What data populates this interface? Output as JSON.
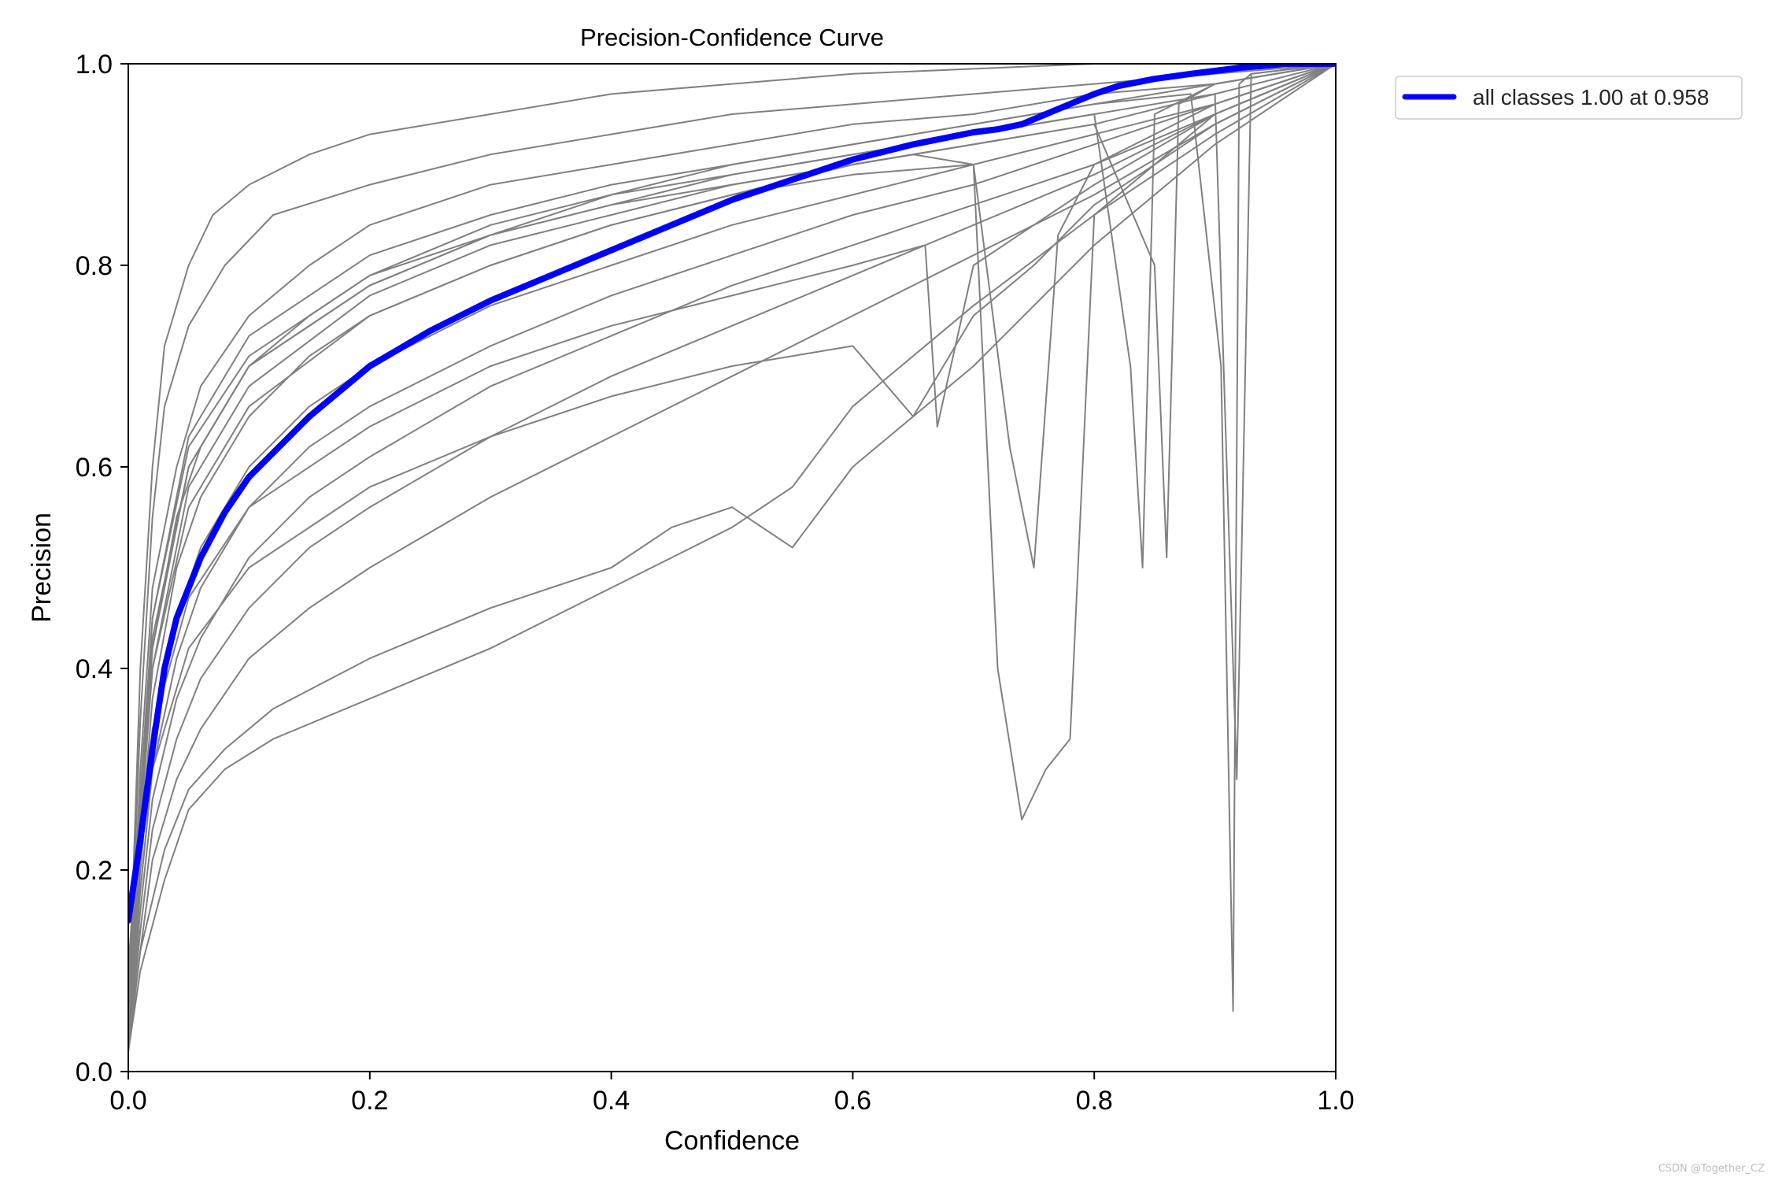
{
  "chart_data": {
    "type": "line",
    "title": "Precision-Confidence Curve",
    "xlabel": "Confidence",
    "ylabel": "Precision",
    "xlim": [
      0.0,
      1.0
    ],
    "ylim": [
      0.0,
      1.0
    ],
    "xticks": [
      "0.0",
      "0.2",
      "0.4",
      "0.6",
      "0.8",
      "1.0"
    ],
    "yticks": [
      "0.0",
      "0.2",
      "0.4",
      "0.6",
      "0.8",
      "1.0"
    ],
    "grid": false,
    "legend_position": "upper-right-outside",
    "legend_label": "all classes 1.00 at 0.958",
    "per_class_curve_color": "#808080",
    "all_classes_color": "#0000ff",
    "series": [
      {
        "name": "all classes 1.00 at 0.958",
        "x": [
          0.0,
          0.01,
          0.02,
          0.03,
          0.04,
          0.06,
          0.08,
          0.1,
          0.15,
          0.2,
          0.25,
          0.3,
          0.35,
          0.4,
          0.45,
          0.5,
          0.55,
          0.6,
          0.65,
          0.7,
          0.72,
          0.74,
          0.76,
          0.78,
          0.8,
          0.82,
          0.85,
          0.88,
          0.9,
          0.92,
          0.95,
          0.958,
          1.0
        ],
        "y": [
          0.15,
          0.23,
          0.32,
          0.4,
          0.45,
          0.51,
          0.555,
          0.59,
          0.65,
          0.7,
          0.735,
          0.765,
          0.79,
          0.815,
          0.84,
          0.865,
          0.885,
          0.905,
          0.92,
          0.932,
          0.935,
          0.94,
          0.95,
          0.96,
          0.97,
          0.978,
          0.985,
          0.99,
          0.993,
          0.996,
          0.999,
          1.0,
          1.0
        ]
      }
    ],
    "per_class_curves": [
      {
        "x": [
          0.0,
          0.01,
          0.02,
          0.03,
          0.05,
          0.07,
          0.1,
          0.15,
          0.2,
          0.3,
          0.4,
          0.5,
          0.6,
          0.7,
          0.8,
          0.9,
          0.95,
          1.0
        ],
        "y": [
          0.05,
          0.4,
          0.6,
          0.72,
          0.8,
          0.85,
          0.88,
          0.91,
          0.93,
          0.95,
          0.97,
          0.98,
          0.99,
          0.995,
          1.0,
          1.0,
          1.0,
          1.0
        ]
      },
      {
        "x": [
          0.0,
          0.01,
          0.02,
          0.03,
          0.05,
          0.08,
          0.12,
          0.2,
          0.3,
          0.4,
          0.5,
          0.6,
          0.7,
          0.8,
          0.9,
          1.0
        ],
        "y": [
          0.05,
          0.35,
          0.55,
          0.66,
          0.74,
          0.8,
          0.85,
          0.88,
          0.91,
          0.93,
          0.95,
          0.96,
          0.97,
          0.98,
          0.99,
          1.0
        ]
      },
      {
        "x": [
          0.0,
          0.01,
          0.02,
          0.04,
          0.06,
          0.1,
          0.15,
          0.2,
          0.3,
          0.4,
          0.5,
          0.6,
          0.7,
          0.8,
          0.9,
          1.0
        ],
        "y": [
          0.04,
          0.3,
          0.48,
          0.6,
          0.68,
          0.75,
          0.8,
          0.84,
          0.88,
          0.9,
          0.92,
          0.94,
          0.95,
          0.97,
          0.98,
          1.0
        ]
      },
      {
        "x": [
          0.0,
          0.01,
          0.02,
          0.04,
          0.06,
          0.1,
          0.15,
          0.2,
          0.3,
          0.4,
          0.5,
          0.6,
          0.7,
          0.8,
          0.9,
          1.0
        ],
        "y": [
          0.04,
          0.25,
          0.42,
          0.55,
          0.62,
          0.7,
          0.75,
          0.79,
          0.84,
          0.87,
          0.9,
          0.92,
          0.94,
          0.96,
          0.98,
          1.0
        ]
      },
      {
        "x": [
          0.0,
          0.01,
          0.02,
          0.04,
          0.06,
          0.1,
          0.15,
          0.2,
          0.3,
          0.4,
          0.5,
          0.6,
          0.7,
          0.8,
          0.9,
          1.0
        ],
        "y": [
          0.03,
          0.22,
          0.37,
          0.5,
          0.57,
          0.65,
          0.71,
          0.75,
          0.8,
          0.84,
          0.87,
          0.9,
          0.92,
          0.94,
          0.97,
          1.0
        ]
      },
      {
        "x": [
          0.0,
          0.01,
          0.02,
          0.04,
          0.06,
          0.1,
          0.15,
          0.2,
          0.3,
          0.4,
          0.5,
          0.6,
          0.7,
          0.8,
          0.9,
          1.0
        ],
        "y": [
          0.03,
          0.2,
          0.33,
          0.45,
          0.52,
          0.6,
          0.66,
          0.7,
          0.76,
          0.8,
          0.84,
          0.87,
          0.9,
          0.93,
          0.96,
          1.0
        ]
      },
      {
        "x": [
          0.0,
          0.01,
          0.02,
          0.04,
          0.06,
          0.1,
          0.15,
          0.2,
          0.3,
          0.4,
          0.5,
          0.6,
          0.7,
          0.8,
          0.9,
          1.0
        ],
        "y": [
          0.03,
          0.18,
          0.3,
          0.41,
          0.48,
          0.56,
          0.62,
          0.66,
          0.72,
          0.77,
          0.81,
          0.85,
          0.88,
          0.92,
          0.96,
          1.0
        ]
      },
      {
        "x": [
          0.0,
          0.01,
          0.02,
          0.04,
          0.06,
          0.1,
          0.15,
          0.2,
          0.3,
          0.4,
          0.5,
          0.6,
          0.7,
          0.8,
          0.9,
          1.0
        ],
        "y": [
          0.02,
          0.16,
          0.27,
          0.37,
          0.43,
          0.51,
          0.57,
          0.61,
          0.68,
          0.73,
          0.78,
          0.82,
          0.86,
          0.9,
          0.95,
          1.0
        ]
      },
      {
        "x": [
          0.0,
          0.01,
          0.02,
          0.04,
          0.06,
          0.1,
          0.15,
          0.2,
          0.3,
          0.4,
          0.5,
          0.6,
          0.7,
          0.8,
          0.9,
          1.0
        ],
        "y": [
          0.02,
          0.14,
          0.24,
          0.33,
          0.39,
          0.46,
          0.52,
          0.56,
          0.63,
          0.69,
          0.74,
          0.79,
          0.84,
          0.89,
          0.95,
          1.0
        ]
      },
      {
        "x": [
          0.0,
          0.01,
          0.02,
          0.04,
          0.06,
          0.1,
          0.15,
          0.2,
          0.3,
          0.4,
          0.5,
          0.6,
          0.7,
          0.8,
          0.9,
          1.0
        ],
        "y": [
          0.02,
          0.12,
          0.21,
          0.29,
          0.34,
          0.41,
          0.46,
          0.5,
          0.57,
          0.63,
          0.69,
          0.75,
          0.81,
          0.87,
          0.94,
          1.0
        ]
      },
      {
        "x": [
          0.0,
          0.01,
          0.03,
          0.05,
          0.08,
          0.12,
          0.2,
          0.3,
          0.4,
          0.5,
          0.55,
          0.6,
          0.7,
          0.8,
          0.9,
          1.0
        ],
        "y": [
          0.02,
          0.1,
          0.19,
          0.26,
          0.3,
          0.33,
          0.37,
          0.42,
          0.48,
          0.54,
          0.58,
          0.66,
          0.76,
          0.85,
          0.93,
          1.0
        ]
      },
      {
        "x": [
          0.0,
          0.01,
          0.03,
          0.05,
          0.08,
          0.12,
          0.2,
          0.3,
          0.4,
          0.45,
          0.5,
          0.55,
          0.6,
          0.7,
          0.8,
          0.9,
          1.0
        ],
        "y": [
          0.02,
          0.12,
          0.22,
          0.28,
          0.32,
          0.36,
          0.41,
          0.46,
          0.5,
          0.54,
          0.56,
          0.52,
          0.6,
          0.7,
          0.82,
          0.92,
          1.0
        ]
      },
      {
        "x": [
          0.0,
          0.02,
          0.05,
          0.1,
          0.2,
          0.3,
          0.4,
          0.5,
          0.6,
          0.65,
          0.7,
          0.72,
          0.74,
          0.76,
          0.78,
          0.8,
          0.9,
          1.0
        ],
        "y": [
          0.1,
          0.45,
          0.62,
          0.71,
          0.79,
          0.83,
          0.86,
          0.88,
          0.9,
          0.91,
          0.9,
          0.4,
          0.25,
          0.3,
          0.33,
          0.85,
          0.95,
          1.0
        ]
      },
      {
        "x": [
          0.0,
          0.02,
          0.05,
          0.1,
          0.2,
          0.3,
          0.4,
          0.5,
          0.6,
          0.7,
          0.73,
          0.75,
          0.77,
          0.8,
          0.9,
          1.0
        ],
        "y": [
          0.1,
          0.4,
          0.56,
          0.66,
          0.75,
          0.8,
          0.84,
          0.87,
          0.89,
          0.9,
          0.62,
          0.5,
          0.83,
          0.9,
          0.96,
          1.0
        ]
      },
      {
        "x": [
          0.0,
          0.02,
          0.05,
          0.1,
          0.2,
          0.3,
          0.4,
          0.5,
          0.6,
          0.7,
          0.8,
          0.83,
          0.84,
          0.85,
          0.9,
          1.0
        ],
        "y": [
          0.08,
          0.42,
          0.6,
          0.7,
          0.78,
          0.83,
          0.86,
          0.89,
          0.91,
          0.93,
          0.95,
          0.7,
          0.5,
          0.95,
          0.98,
          1.0
        ]
      },
      {
        "x": [
          0.0,
          0.02,
          0.05,
          0.1,
          0.2,
          0.3,
          0.4,
          0.5,
          0.6,
          0.7,
          0.8,
          0.85,
          0.86,
          0.87,
          0.9,
          1.0
        ],
        "y": [
          0.08,
          0.4,
          0.58,
          0.68,
          0.77,
          0.82,
          0.85,
          0.88,
          0.9,
          0.92,
          0.94,
          0.8,
          0.51,
          0.96,
          0.98,
          1.0
        ]
      },
      {
        "x": [
          0.0,
          0.02,
          0.05,
          0.1,
          0.2,
          0.3,
          0.4,
          0.5,
          0.6,
          0.7,
          0.8,
          0.88,
          0.905,
          0.915,
          0.92,
          0.93,
          1.0
        ],
        "y": [
          0.1,
          0.45,
          0.63,
          0.73,
          0.81,
          0.85,
          0.88,
          0.9,
          0.92,
          0.94,
          0.96,
          0.97,
          0.7,
          0.06,
          0.98,
          0.99,
          1.0
        ]
      },
      {
        "x": [
          0.0,
          0.02,
          0.05,
          0.1,
          0.2,
          0.3,
          0.4,
          0.5,
          0.6,
          0.7,
          0.8,
          0.9,
          0.918,
          0.922,
          0.93,
          1.0
        ],
        "y": [
          0.1,
          0.43,
          0.6,
          0.7,
          0.78,
          0.83,
          0.87,
          0.89,
          0.91,
          0.93,
          0.95,
          0.97,
          0.29,
          0.51,
          0.99,
          1.0
        ]
      },
      {
        "x": [
          0.0,
          0.02,
          0.05,
          0.1,
          0.2,
          0.3,
          0.4,
          0.5,
          0.6,
          0.65,
          0.7,
          0.75,
          0.8,
          0.9,
          1.0
        ],
        "y": [
          0.06,
          0.3,
          0.42,
          0.5,
          0.58,
          0.63,
          0.67,
          0.7,
          0.72,
          0.65,
          0.75,
          0.8,
          0.86,
          0.94,
          1.0
        ]
      },
      {
        "x": [
          0.0,
          0.02,
          0.05,
          0.1,
          0.2,
          0.3,
          0.4,
          0.5,
          0.6,
          0.66,
          0.67,
          0.7,
          0.8,
          0.9,
          1.0
        ],
        "y": [
          0.07,
          0.34,
          0.47,
          0.56,
          0.64,
          0.7,
          0.74,
          0.77,
          0.8,
          0.82,
          0.64,
          0.8,
          0.88,
          0.95,
          1.0
        ]
      }
    ]
  },
  "watermark": "CSDN @Together_CZ"
}
